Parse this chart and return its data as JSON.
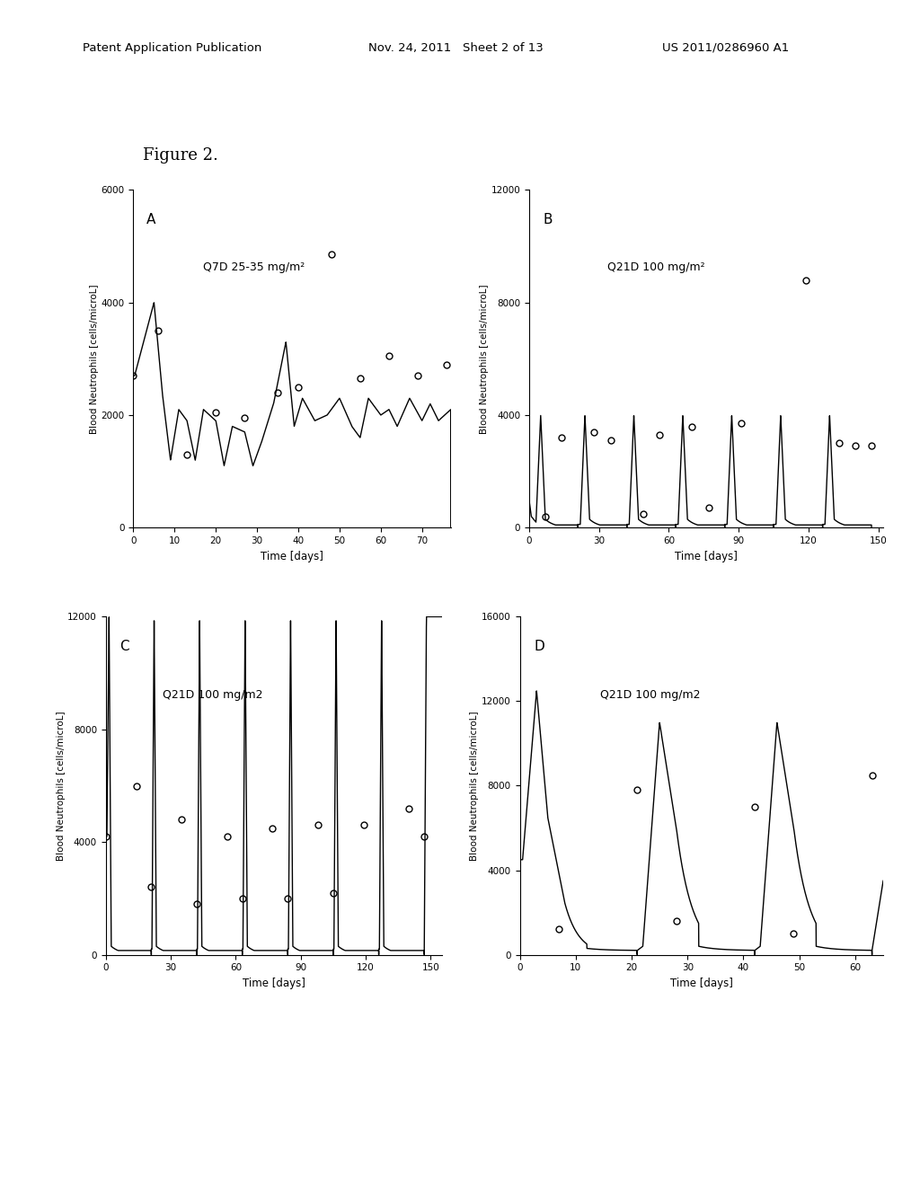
{
  "figure_title": "Figure 2.",
  "background_color": "#ffffff",
  "header_left": "Patent Application Publication",
  "header_mid": "Nov. 24, 2011   Sheet 2 of 13",
  "header_right": "US 2011/0286960 A1",
  "panels": [
    {
      "label": "A",
      "subtitle": "Q7D 25-35 mg/m²",
      "ylabel": "Blood Neutrophils [cells/microL]",
      "xlabel": "Time [days]",
      "xlim": [
        0,
        77
      ],
      "ylim": [
        0,
        6000
      ],
      "yticks": [
        0,
        2000,
        4000,
        6000
      ],
      "xticks": [
        0,
        10,
        20,
        30,
        40,
        50,
        60,
        70
      ],
      "obs_x": [
        0,
        6,
        13,
        20,
        27,
        35,
        40,
        48,
        55,
        62,
        69,
        76
      ],
      "obs_y": [
        2700,
        3500,
        1300,
        2050,
        1950,
        2400,
        2500,
        4850,
        2650,
        3050,
        2700,
        2900
      ]
    },
    {
      "label": "B",
      "subtitle": "Q21D 100 mg/m²",
      "ylabel": "Blood Neutrophils [cells/microL]",
      "xlabel": "Time [days]",
      "xlim": [
        0,
        152
      ],
      "ylim": [
        0,
        12000
      ],
      "yticks": [
        0,
        4000,
        8000,
        12000
      ],
      "xticks": [
        0,
        30,
        60,
        90,
        120,
        150
      ],
      "obs_x": [
        7,
        14,
        28,
        35,
        49,
        56,
        70,
        77,
        91,
        119,
        133,
        140,
        147
      ],
      "obs_y": [
        400,
        3200,
        3400,
        3100,
        500,
        3300,
        3600,
        700,
        3700,
        8800,
        3000,
        2900,
        2900
      ]
    },
    {
      "label": "C",
      "subtitle": "Q21D 100 mg/m2",
      "ylabel": "Blood Neutrophils [cells/microL]",
      "xlabel": "Time [days]",
      "xlim": [
        0,
        155
      ],
      "ylim": [
        0,
        12000
      ],
      "yticks": [
        0,
        4000,
        8000,
        12000
      ],
      "xticks": [
        0,
        30,
        60,
        90,
        120,
        150
      ],
      "obs_x": [
        0,
        14,
        21,
        35,
        42,
        56,
        63,
        77,
        84,
        98,
        105,
        119,
        140,
        147
      ],
      "obs_y": [
        4200,
        6000,
        2400,
        4800,
        1800,
        4200,
        2000,
        4500,
        2000,
        4600,
        2200,
        4600,
        5200,
        4200
      ]
    },
    {
      "label": "D",
      "subtitle": "Q21D 100 mg/m2",
      "ylabel": "Blood Neutrophils [cells/microL]",
      "xlabel": "Time [days]",
      "xlim": [
        0,
        65
      ],
      "ylim": [
        0,
        16000
      ],
      "yticks": [
        0,
        4000,
        8000,
        12000,
        16000
      ],
      "xticks": [
        0,
        10,
        20,
        30,
        40,
        50,
        60
      ],
      "obs_x": [
        7,
        21,
        28,
        42,
        49,
        63
      ],
      "obs_y": [
        1200,
        7800,
        1600,
        7000,
        1000,
        8500
      ]
    }
  ]
}
